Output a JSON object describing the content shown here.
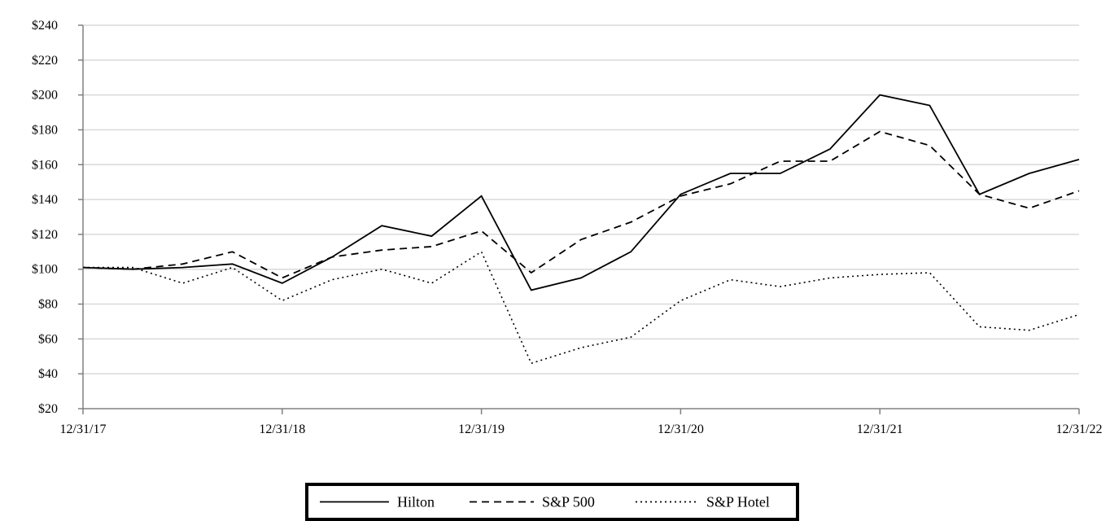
{
  "chart_data": {
    "type": "line",
    "title": "",
    "xlabel": "",
    "ylabel": "",
    "ylim": [
      20,
      240
    ],
    "y_ticks": [
      20,
      40,
      60,
      80,
      100,
      120,
      140,
      160,
      180,
      200,
      220,
      240
    ],
    "y_tick_labels": [
      "$20",
      "$40",
      "$60",
      "$80",
      "$100",
      "$120",
      "$140",
      "$160",
      "$180",
      "$200",
      "$220",
      "$240"
    ],
    "x_tick_labels": [
      "12/31/17",
      "12/31/18",
      "12/31/19",
      "12/31/20",
      "12/31/21",
      "12/31/22"
    ],
    "x_tick_positions": [
      0,
      4,
      8,
      12,
      16,
      20
    ],
    "grid": "horizontal",
    "legend_position": "bottom-center",
    "series": [
      {
        "name": "Hilton",
        "style": "solid",
        "color": "#000000",
        "values": [
          101,
          100,
          101,
          103,
          92,
          107,
          125,
          119,
          142,
          88,
          95,
          110,
          143,
          155,
          155,
          169,
          200,
          194,
          143,
          155,
          163
        ]
      },
      {
        "name": "S&P 500",
        "style": "dashed",
        "color": "#000000",
        "values": [
          101,
          100,
          103,
          110,
          95,
          107,
          111,
          113,
          122,
          98,
          117,
          127,
          142,
          149,
          162,
          162,
          179,
          171,
          143,
          135,
          145
        ]
      },
      {
        "name": "S&P Hotel",
        "style": "dotted",
        "color": "#000000",
        "values": [
          101,
          101,
          92,
          101,
          82,
          94,
          100,
          92,
          110,
          46,
          55,
          61,
          82,
          94,
          90,
          95,
          97,
          98,
          67,
          65,
          74
        ]
      }
    ]
  }
}
